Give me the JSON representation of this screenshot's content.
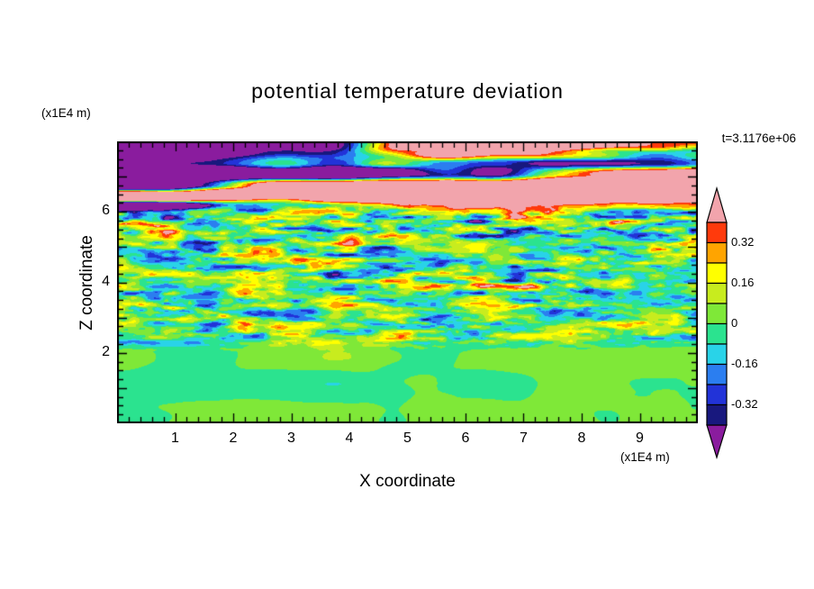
{
  "title": "potential temperature deviation",
  "timestamp": "t=3.1176e+06",
  "axes": {
    "x": {
      "label": "X coordinate",
      "unit": "(x1E4 m)",
      "ticks": [
        "1",
        "2",
        "3",
        "4",
        "5",
        "6",
        "7",
        "8",
        "9"
      ],
      "min": 0,
      "max": 10
    },
    "z": {
      "label": "Z coordinate",
      "unit": "(x1E4 m)",
      "ticks": [
        "2",
        "4",
        "6"
      ],
      "min": 0,
      "max": 8
    }
  },
  "colorbar": {
    "labels": [
      "0.32",
      "0.16",
      "0",
      "-0.16",
      "-0.32"
    ],
    "values": [
      0.32,
      0.16,
      0,
      -0.16,
      -0.32
    ],
    "top_arrow_color": "#f2a4ac",
    "bottom_arrow_color": "#8a1c9e"
  },
  "chart_data": {
    "type": "heatmap",
    "title": "potential temperature deviation",
    "xlabel": "X coordinate (x1E4 m)",
    "ylabel": "Z coordinate (x1E4 m)",
    "time_label": "t=3.1176e+06",
    "xlim": [
      0,
      10
    ],
    "ylim": [
      0,
      8
    ],
    "contour_levels": [
      -0.4,
      -0.32,
      -0.24,
      -0.16,
      -0.08,
      0,
      0.08,
      0.16,
      0.24,
      0.32,
      0.4
    ],
    "colors": [
      "#8a1c9e",
      "#18187e",
      "#2233d8",
      "#2b7ef0",
      "#29d3e8",
      "#2be38f",
      "#7fe838",
      "#c8ec1e",
      "#ffff00",
      "#ffa400",
      "#ff3a0c",
      "#f2a4ac"
    ],
    "structure": {
      "upper_layer": {
        "z_range": [
          5.8,
          8
        ],
        "description": "large-amplitude horizontal wave bands alternating above +0.4 (pink) and below -0.4 (purple) with thin multicolor fringes"
      },
      "middle_layer": {
        "z_range": [
          2.1,
          5.8
        ],
        "description": "fine-scale turbulent horizontal streaks spanning roughly -0.35 to +0.35 (red/orange/yellow/green/cyan/blue/navy filaments)"
      },
      "lower_layer": {
        "z_range": [
          0,
          2.1
        ],
        "description": "near-zero smooth field, broad patches between -0.08 and +0.08 (two-tone green blobs)"
      }
    }
  }
}
